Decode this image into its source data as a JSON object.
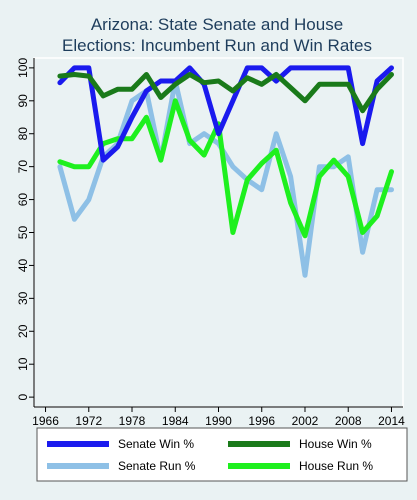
{
  "chart_data": {
    "type": "line",
    "title": [
      "Arizona: State Senate and House",
      "Elections: Incumbent Run and Win Rates"
    ],
    "xlabel": "",
    "ylabel": "",
    "x_ticks": [
      1966,
      1972,
      1978,
      1984,
      1990,
      1996,
      2002,
      2008,
      2014
    ],
    "y_ticks": [
      0,
      10,
      20,
      30,
      40,
      50,
      60,
      70,
      80,
      90,
      100
    ],
    "xlim": [
      1964.4,
      2015.6
    ],
    "ylim": [
      -3,
      103
    ],
    "grid": false,
    "legend_position": "bottom",
    "x": [
      1968,
      1970,
      1972,
      1974,
      1976,
      1978,
      1980,
      1982,
      1984,
      1986,
      1988,
      1990,
      1992,
      1994,
      1996,
      1998,
      2000,
      2002,
      2004,
      2006,
      2008,
      2010,
      2012,
      2014
    ],
    "series": [
      {
        "name": "Senate Win %",
        "color": "#1a1aee",
        "values": [
          95.5,
          100,
          100,
          72,
          76,
          85,
          93,
          96,
          96,
          100,
          95,
          80,
          90,
          100,
          100,
          96,
          100,
          100,
          100,
          100,
          100,
          77,
          96,
          100
        ]
      },
      {
        "name": "House Win %",
        "color": "#1a7a1a",
        "values": [
          97.5,
          98,
          97.5,
          91.5,
          93.5,
          93.5,
          98,
          91,
          95,
          98,
          95.5,
          96,
          93,
          97,
          95,
          98,
          94,
          90,
          95,
          95,
          95,
          87,
          93.5,
          98
        ]
      },
      {
        "name": "Senate Run %",
        "color": "#8ec0e6",
        "values": [
          70,
          54,
          60,
          73,
          77,
          90,
          93,
          72,
          96,
          77,
          80,
          77,
          70,
          66,
          63,
          80,
          67,
          37,
          70,
          70,
          73,
          44,
          63,
          63
        ]
      },
      {
        "name": "House Run %",
        "color": "#1ef01e",
        "values": [
          71.5,
          70,
          70,
          77,
          78.5,
          78.5,
          85,
          72,
          90,
          78,
          73.5,
          83,
          50,
          66,
          71,
          75,
          59,
          49,
          67,
          72,
          67,
          50,
          55,
          68.5
        ]
      }
    ]
  }
}
